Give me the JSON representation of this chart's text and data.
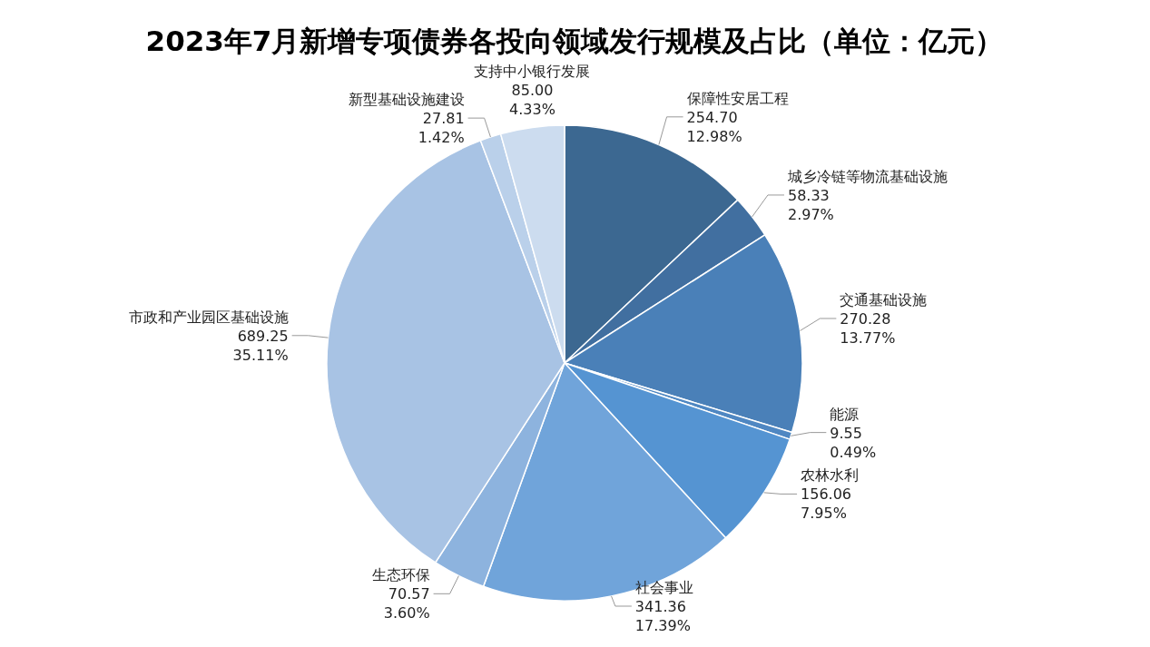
{
  "chart_data": {
    "type": "pie",
    "title": "2023年7月新增专项债券各投向领域发行规模及占比（单位：亿元）",
    "categories": [
      "保障性安居工程",
      "城乡冷链等物流基础设施",
      "交通基础设施",
      "能源",
      "农林水利",
      "社会事业",
      "生态环保",
      "市政和产业园区基础设施",
      "新型基础设施建设",
      "支持中小银行发展"
    ],
    "values": [
      254.7,
      58.33,
      270.28,
      9.55,
      156.06,
      341.36,
      70.57,
      689.25,
      27.81,
      85.0
    ],
    "value_labels": [
      "254.70\n12.98%",
      "58.33\n2.97%",
      "270.28\n13.77%",
      "9.55\n0.49%",
      "156.06\n7.95%",
      "341.36\n17.39%",
      "70.57\n3.60%",
      "689.25\n35.11%",
      "27.81\n1.42%",
      "85.00\n4.33%"
    ],
    "colors": [
      "#3c6891",
      "#416fa0",
      "#4a80b8",
      "#4f87c2",
      "#5594d2",
      "#70a4da",
      "#8db3de",
      "#a8c3e4",
      "#bad0ea",
      "#ccdcef"
    ],
    "legend": false
  }
}
